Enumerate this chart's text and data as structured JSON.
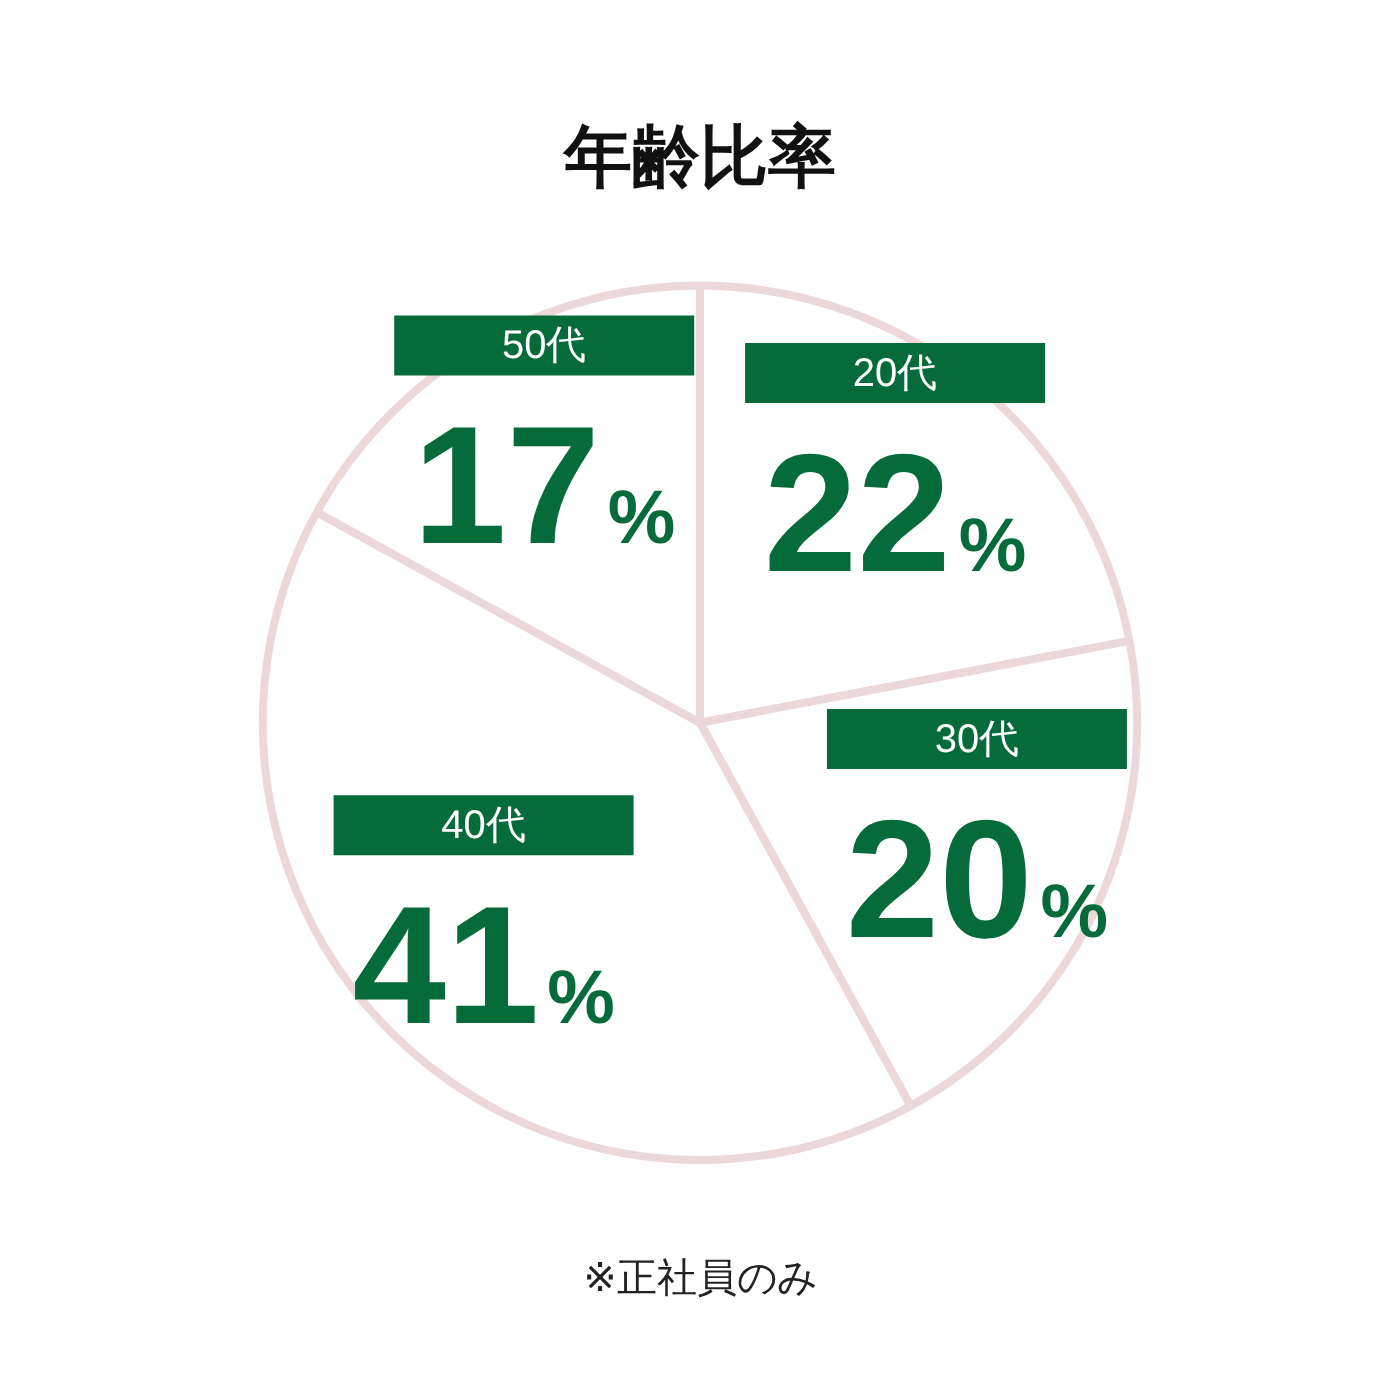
{
  "chart_data": {
    "type": "pie",
    "title": "年齢比率",
    "categories": [
      "20代",
      "30代",
      "40代",
      "50代"
    ],
    "values": [
      22,
      20,
      41,
      17
    ],
    "value_labels": [
      "22%",
      "20%",
      "41%",
      "17%"
    ],
    "colors": [
      "#ffffff",
      "#ffffff",
      "#ffffff",
      "#ffffff"
    ],
    "legend": false,
    "annotations": [
      "※正社員のみ"
    ]
  }
}
